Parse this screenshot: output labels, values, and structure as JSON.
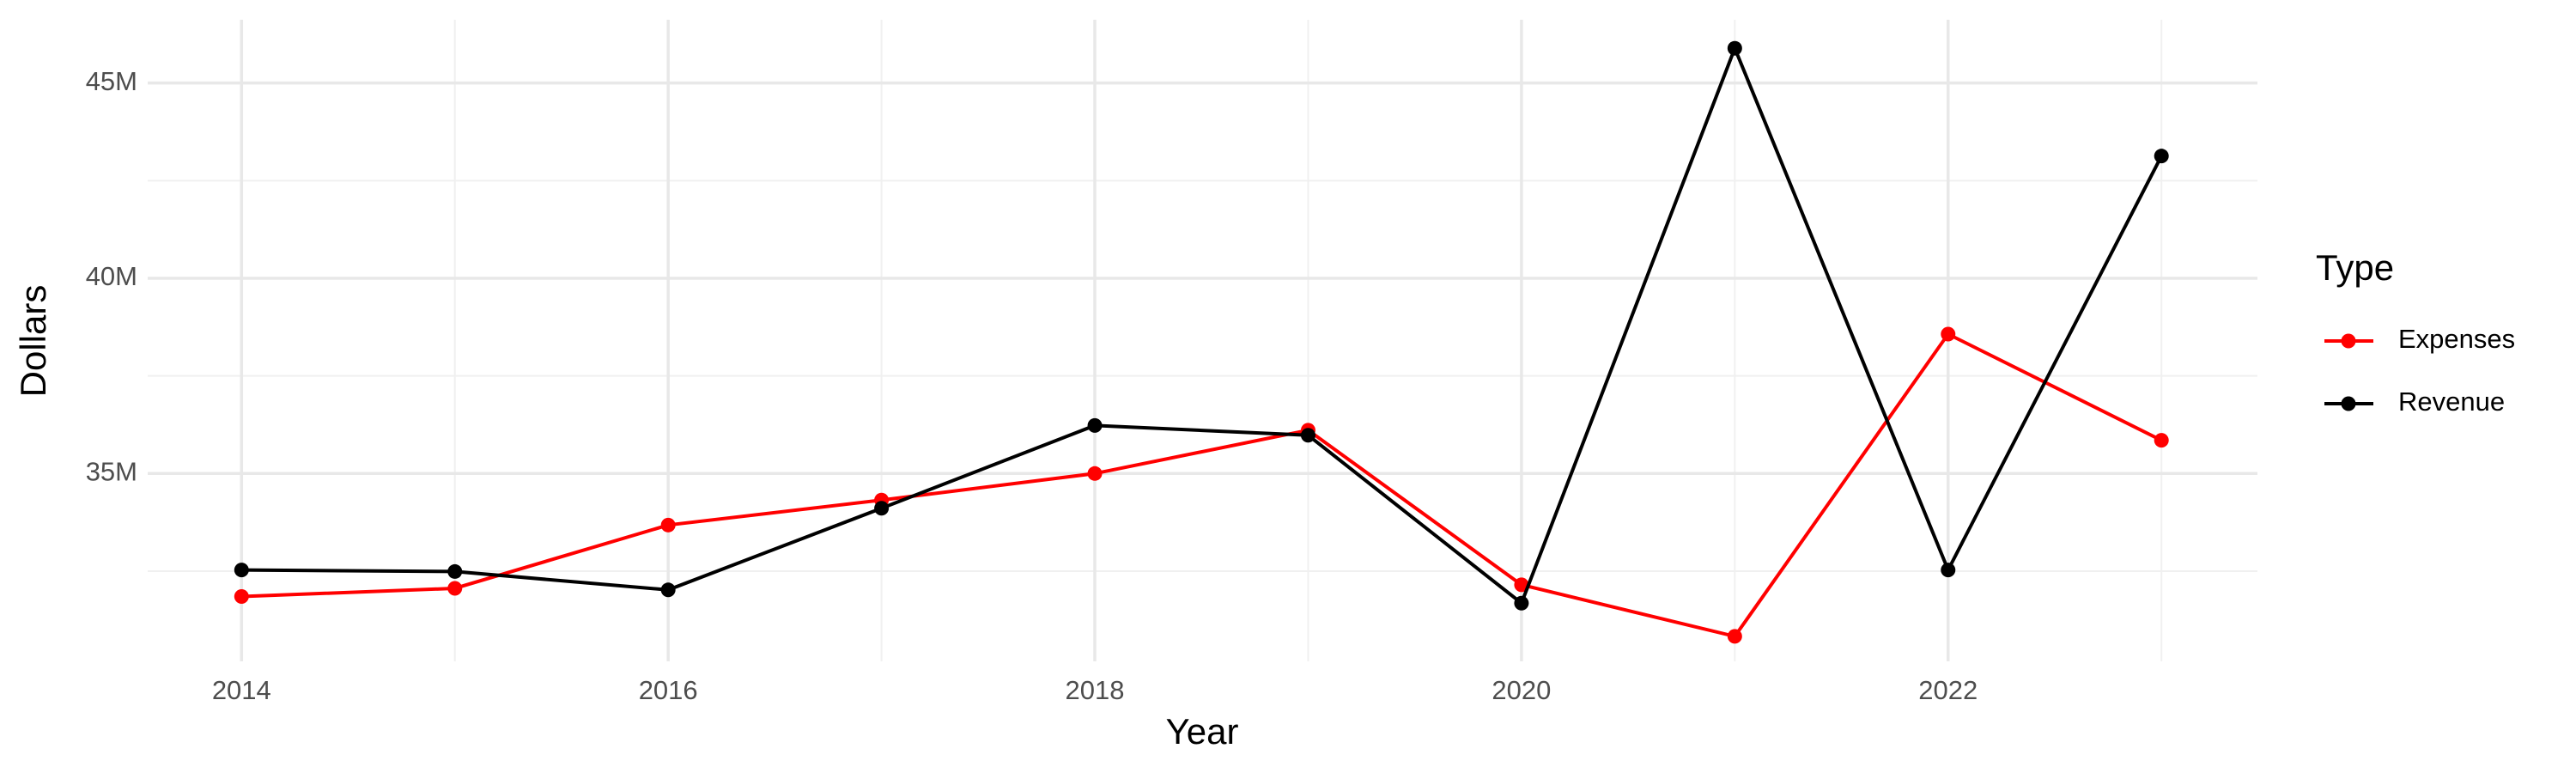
{
  "chart_data": {
    "type": "line",
    "x_label": "Year",
    "y_label": "Dollars",
    "legend_title": "Type",
    "x": [
      2014,
      2015,
      2016,
      2017,
      2018,
      2019,
      2020,
      2021,
      2022,
      2023
    ],
    "series": [
      {
        "name": "Expenses",
        "color": "#ff0000",
        "values": [
          31850000,
          32060000,
          33680000,
          34320000,
          35000000,
          36110000,
          32150000,
          30830000,
          38570000,
          35850000
        ]
      },
      {
        "name": "Revenue",
        "color": "#000000",
        "values": [
          32530000,
          32490000,
          32020000,
          34110000,
          36230000,
          35980000,
          31680000,
          45890000,
          32530000,
          43130000
        ]
      }
    ],
    "xlim": [
      2013.56,
      2023.45
    ],
    "xticks": [
      2014,
      2016,
      2018,
      2020,
      2022
    ],
    "ylim": [
      30190000,
      46620000
    ],
    "yticks": [
      {
        "value": 35000000,
        "label": "35M"
      },
      {
        "value": 40000000,
        "label": "40M"
      },
      {
        "value": 45000000,
        "label": "45M"
      }
    ],
    "grid": true,
    "legend_position": "right"
  }
}
